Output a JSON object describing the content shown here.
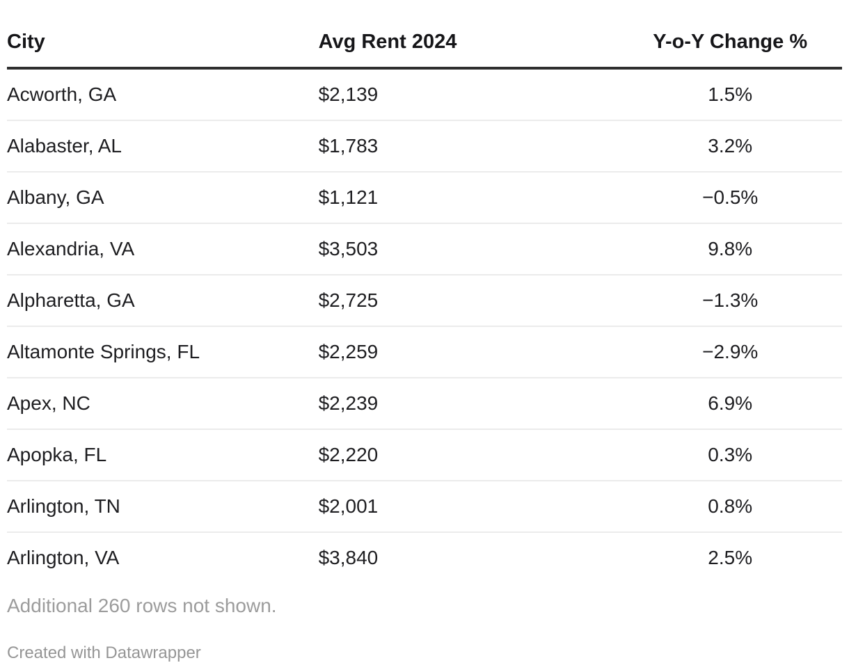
{
  "colors": {
    "background": "#ffffff",
    "header_text": "#161619",
    "body_text": "#1d1d20",
    "header_rule": "#2e2e2e",
    "row_separator": "#ebebeb",
    "note_text": "#9c9c9c",
    "attribution_text": "#959595"
  },
  "table": {
    "columns": [
      {
        "label": "City",
        "align": "left"
      },
      {
        "label": "Avg Rent 2024",
        "align": "left"
      },
      {
        "label": "Y-o-Y Change %",
        "align": "center"
      }
    ],
    "rows": [
      {
        "city": "Acworth, GA",
        "rent": "$2,139",
        "change": "1.5%"
      },
      {
        "city": "Alabaster, AL",
        "rent": "$1,783",
        "change": "3.2%"
      },
      {
        "city": "Albany, GA",
        "rent": "$1,121",
        "change": "−0.5%"
      },
      {
        "city": "Alexandria, VA",
        "rent": "$3,503",
        "change": "9.8%"
      },
      {
        "city": "Alpharetta, GA",
        "rent": "$2,725",
        "change": "−1.3%"
      },
      {
        "city": "Altamonte Springs, FL",
        "rent": "$2,259",
        "change": "−2.9%"
      },
      {
        "city": "Apex, NC",
        "rent": "$2,239",
        "change": "6.9%"
      },
      {
        "city": "Apopka, FL",
        "rent": "$2,220",
        "change": "0.3%"
      },
      {
        "city": "Arlington, TN",
        "rent": "$2,001",
        "change": "0.8%"
      },
      {
        "city": "Arlington, VA",
        "rent": "$3,840",
        "change": "2.5%"
      }
    ],
    "footer_note": "Additional 260 rows not shown.",
    "attribution": "Created with Datawrapper"
  },
  "chart_data": {
    "type": "table",
    "columns": [
      "City",
      "Avg Rent 2024",
      "Y-o-Y Change %"
    ],
    "rows": [
      [
        "Acworth, GA",
        2139,
        1.5
      ],
      [
        "Alabaster, AL",
        1783,
        3.2
      ],
      [
        "Albany, GA",
        1121,
        -0.5
      ],
      [
        "Alexandria, VA",
        3503,
        9.8
      ],
      [
        "Alpharetta, GA",
        2725,
        -1.3
      ],
      [
        "Altamonte Springs, FL",
        2259,
        -2.9
      ],
      [
        "Apex, NC",
        2239,
        6.9
      ],
      [
        "Apopka, FL",
        2220,
        0.3
      ],
      [
        "Arlington, TN",
        2001,
        0.8
      ],
      [
        "Arlington, VA",
        3840,
        2.5
      ]
    ],
    "units": {
      "Avg Rent 2024": "USD",
      "Y-o-Y Change %": "%"
    },
    "note": "Additional 260 rows not shown.",
    "attribution": "Created with Datawrapper",
    "rows_total_hidden": 260
  }
}
